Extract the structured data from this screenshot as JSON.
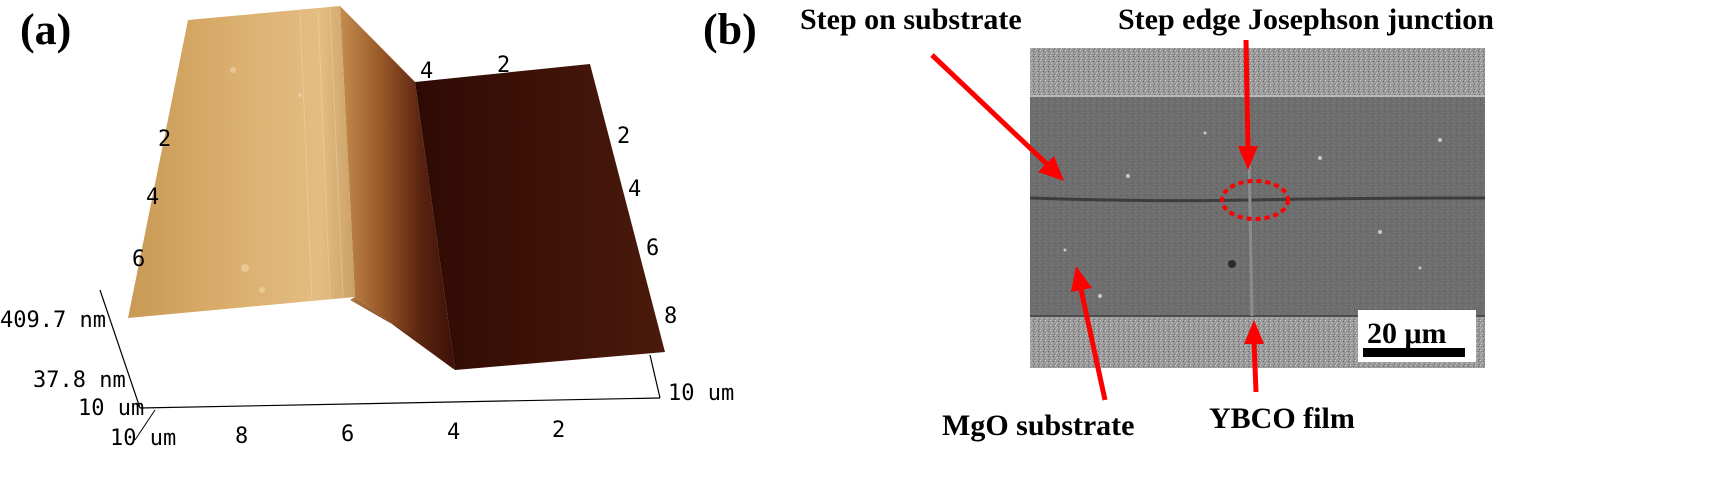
{
  "panel_a": {
    "letter": "(a)",
    "z_max_label": "409.7 nm",
    "z_min_label": "37.8 nm",
    "front_axis_ticks": [
      "10 um",
      "8",
      "6",
      "4",
      "2"
    ],
    "right_axis_end_label": "10 um",
    "right_axis_ticks": [
      "2",
      "4",
      "6",
      "8"
    ],
    "left_axis_end_label": "10 um",
    "back_left_ticks": [
      "2",
      "4",
      "6"
    ],
    "back_top_ticks": [
      "4",
      "2"
    ],
    "colors": {
      "plateau_light": "#d8ae68",
      "plateau_dark": "#b88440",
      "trench": "#3a0d05"
    }
  },
  "panel_b": {
    "letter": "(b)",
    "annotations": {
      "step_on_substrate": "Step on substrate",
      "step_edge_junction": "Step edge Josephson junction",
      "mgo_substrate": "MgO substrate",
      "ybco_film": "YBCO film"
    },
    "scale_bar_label": "20 μm",
    "colors": {
      "arrow": "#ff0000",
      "sem_base": "#6f6f6f"
    }
  }
}
